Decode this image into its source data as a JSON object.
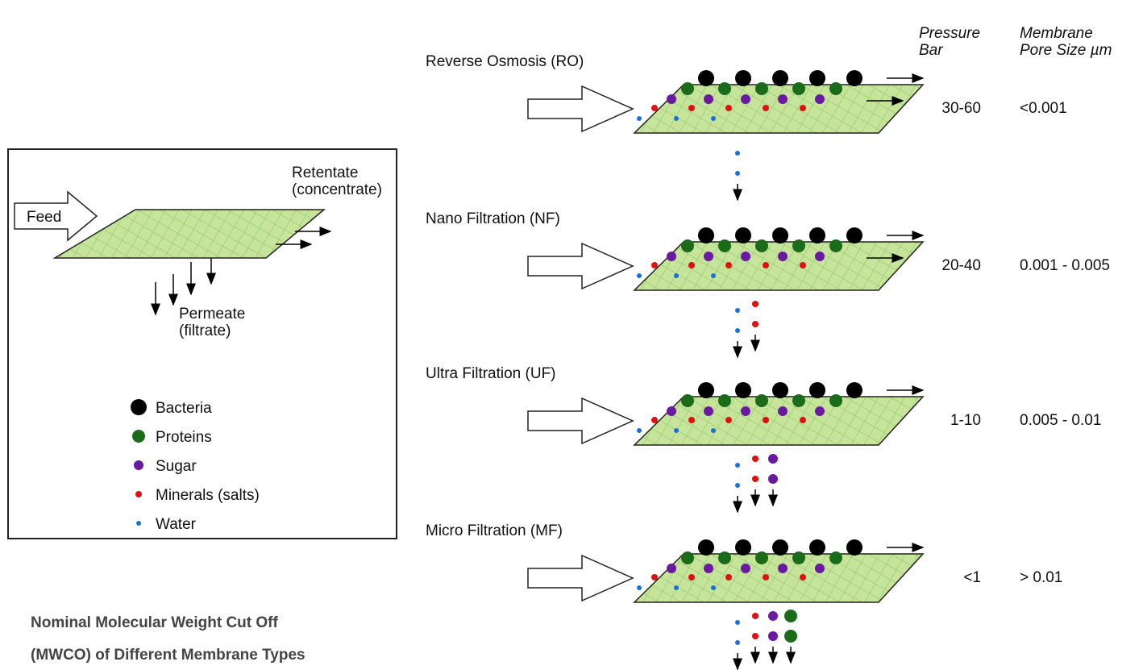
{
  "title_lines": [
    "Nominal Molecular Weight Cut Off",
    "(MWCO) of Different Membrane Types"
  ],
  "pressure_header": [
    "Pressure",
    "Bar"
  ],
  "pore_header": [
    "Membrane",
    "Pore Size µm"
  ],
  "schematic": {
    "feed": "Feed",
    "retentate": [
      "Retentate",
      "(concentrate)"
    ],
    "permeate": [
      "Permeate",
      "(filtrate)"
    ]
  },
  "legend": [
    {
      "label": "Bacteria",
      "color": "#000000"
    },
    {
      "label": "Proteins",
      "color": "#1a6b1a"
    },
    {
      "label": "Sugar",
      "color": "#6a1aa0"
    },
    {
      "label": "Minerals (salts)",
      "color": "#e01010"
    },
    {
      "label": "Water",
      "color": "#1a70d8"
    }
  ],
  "membranes": [
    {
      "name": "Reverse Osmosis (RO)",
      "pressure": "30-60",
      "pore_size": "<0.001"
    },
    {
      "name": "Nano Filtration (NF)",
      "pressure": "20-40",
      "pore_size": "0.001 - 0.005"
    },
    {
      "name": "Ultra Filtration (UF)",
      "pressure": "1-10",
      "pore_size": "0.005 - 0.01"
    },
    {
      "name": "Micro Filtration (MF)",
      "pressure": "<1",
      "pore_size": "> 0.01"
    }
  ]
}
